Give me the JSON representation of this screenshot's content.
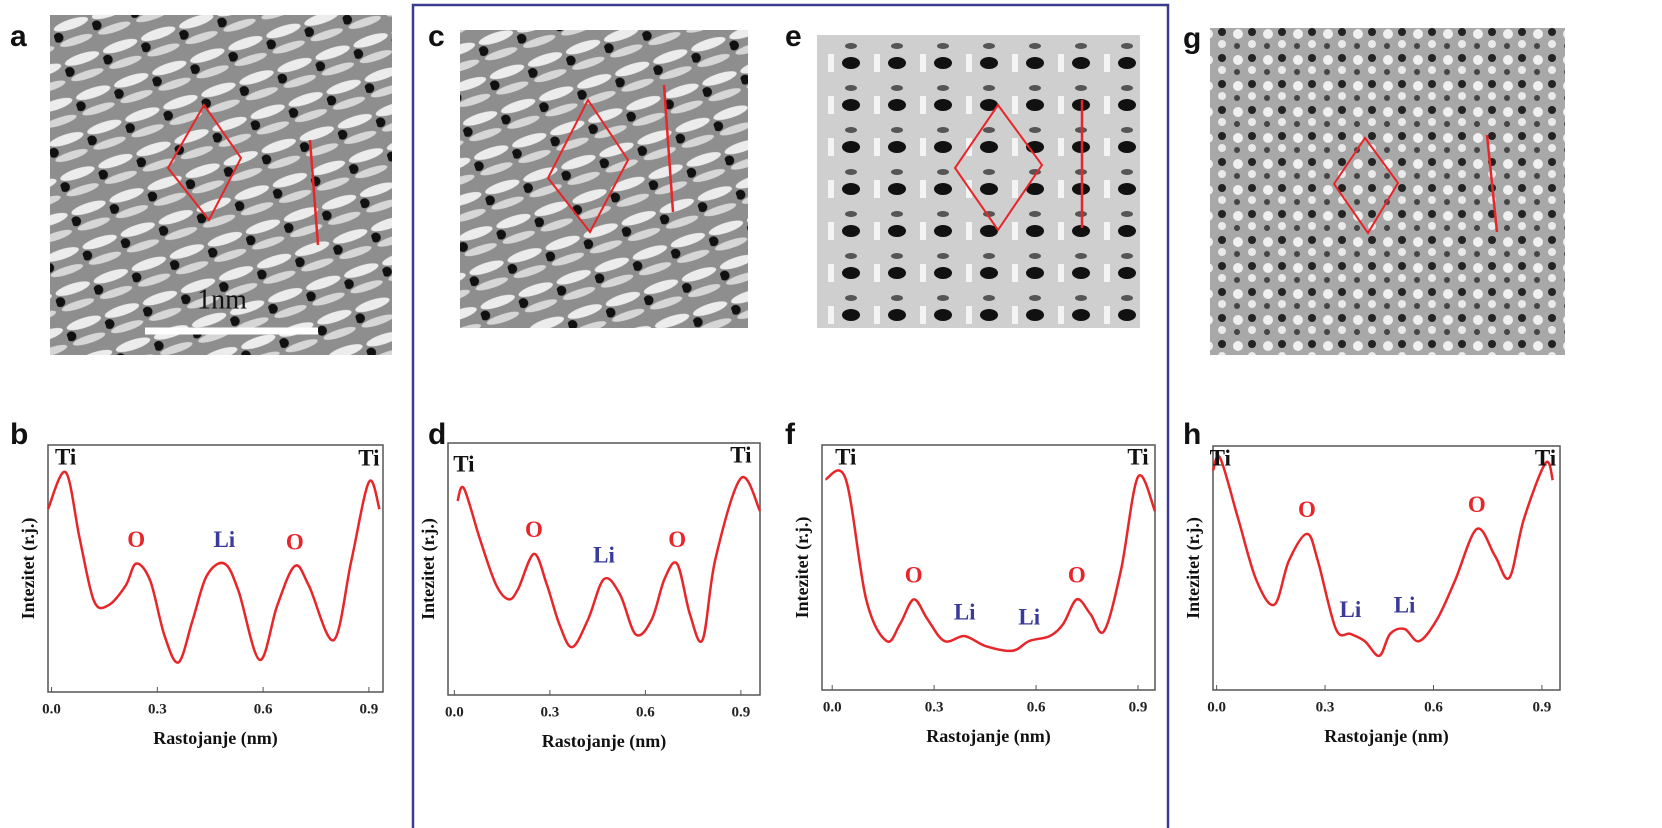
{
  "images": [
    {
      "label": "a",
      "scale_bar": "1nm"
    },
    {
      "label": "c"
    },
    {
      "label": "e"
    },
    {
      "label": "g"
    }
  ],
  "chart_data": [
    {
      "type": "line",
      "panel_label": "b",
      "xlabel": "Rastojanje (nm)",
      "ylabel": "Intezitet (r.j.)",
      "color": "#e8262a",
      "xlim": [
        -0.01,
        0.94
      ],
      "ylim": [
        0,
        1
      ],
      "xticks": [
        {
          "value": 0,
          "label": "0.0"
        },
        0.3,
        0.6,
        0.9
      ],
      "x": [
        -0.01,
        0.04,
        0.08,
        0.12,
        0.16,
        0.21,
        0.24,
        0.28,
        0.32,
        0.36,
        0.4,
        0.44,
        0.49,
        0.53,
        0.59,
        0.64,
        0.69,
        0.73,
        0.8,
        0.85,
        0.9,
        0.93
      ],
      "values": [
        0.74,
        0.89,
        0.62,
        0.37,
        0.35,
        0.43,
        0.52,
        0.45,
        0.23,
        0.12,
        0.29,
        0.47,
        0.52,
        0.41,
        0.13,
        0.35,
        0.51,
        0.43,
        0.21,
        0.53,
        0.85,
        0.74
      ],
      "annotations": [
        {
          "text": "Ti",
          "x": 0.04,
          "color": "#111111"
        },
        {
          "text": "O",
          "x": 0.24,
          "color": "#e8262a"
        },
        {
          "text": "Li",
          "x": 0.49,
          "color": "#3a3a9a"
        },
        {
          "text": "O",
          "x": 0.69,
          "color": "#e8262a"
        },
        {
          "text": "Ti",
          "x": 0.9,
          "color": "#111111"
        }
      ]
    },
    {
      "type": "line",
      "panel_label": "d",
      "xlabel": "Rastojanje (nm)",
      "ylabel": "Intezitet (r.j.)",
      "color": "#e8262a",
      "xlim": [
        -0.02,
        0.96
      ],
      "ylim": [
        0,
        1
      ],
      "xticks": [
        {
          "value": 0,
          "label": "0.0"
        },
        0.3,
        0.6,
        0.9
      ],
      "x": [
        0.01,
        0.03,
        0.08,
        0.13,
        0.17,
        0.2,
        0.25,
        0.29,
        0.33,
        0.37,
        0.42,
        0.47,
        0.52,
        0.57,
        0.62,
        0.66,
        0.7,
        0.74,
        0.78,
        0.82,
        0.9,
        0.96
      ],
      "values": [
        0.77,
        0.82,
        0.62,
        0.44,
        0.38,
        0.42,
        0.56,
        0.44,
        0.28,
        0.19,
        0.3,
        0.46,
        0.4,
        0.24,
        0.3,
        0.46,
        0.52,
        0.32,
        0.22,
        0.54,
        0.86,
        0.73
      ],
      "annotations": [
        {
          "text": "Ti",
          "x": 0.03,
          "color": "#111111"
        },
        {
          "text": "O",
          "x": 0.25,
          "color": "#e8262a"
        },
        {
          "text": "Li",
          "x": 0.47,
          "color": "#3a3a9a"
        },
        {
          "text": "O",
          "x": 0.7,
          "color": "#e8262a"
        },
        {
          "text": "Ti",
          "x": 0.9,
          "color": "#111111"
        }
      ]
    },
    {
      "type": "line",
      "panel_label": "f",
      "xlabel": "Rastojanje (nm)",
      "ylabel": "Intezitet (r.j.)",
      "color": "#e8262a",
      "xlim": [
        -0.03,
        0.95
      ],
      "ylim": [
        0,
        1
      ],
      "xticks": [
        {
          "value": 0,
          "label": "0.0"
        },
        0.3,
        0.6,
        0.9
      ],
      "x": [
        -0.02,
        0.04,
        0.1,
        0.16,
        0.2,
        0.24,
        0.28,
        0.33,
        0.39,
        0.45,
        0.53,
        0.58,
        0.64,
        0.68,
        0.72,
        0.76,
        0.8,
        0.85,
        0.9,
        0.95
      ],
      "values": [
        0.86,
        0.86,
        0.37,
        0.2,
        0.27,
        0.37,
        0.29,
        0.2,
        0.22,
        0.18,
        0.16,
        0.2,
        0.22,
        0.27,
        0.37,
        0.31,
        0.24,
        0.49,
        0.87,
        0.73
      ],
      "annotations": [
        {
          "text": "Ti",
          "x": 0.04,
          "color": "#111111"
        },
        {
          "text": "O",
          "x": 0.24,
          "color": "#e8262a"
        },
        {
          "text": "Li",
          "x": 0.39,
          "color": "#3a3a9a"
        },
        {
          "text": "Li",
          "x": 0.58,
          "color": "#3a3a9a"
        },
        {
          "text": "O",
          "x": 0.72,
          "color": "#e8262a"
        },
        {
          "text": "Ti",
          "x": 0.9,
          "color": "#111111"
        }
      ]
    },
    {
      "type": "line",
      "panel_label": "h",
      "xlabel": "Rastojanje (nm)",
      "ylabel": "Intezitet (r.j.)",
      "color": "#e8262a",
      "xlim": [
        -0.01,
        0.95
      ],
      "ylim": [
        0,
        1
      ],
      "xticks": [
        {
          "value": 0,
          "label": "0.0"
        },
        0.3,
        0.6,
        0.9
      ],
      "x": [
        -0.01,
        0.01,
        0.06,
        0.11,
        0.16,
        0.2,
        0.25,
        0.28,
        0.33,
        0.37,
        0.41,
        0.45,
        0.48,
        0.52,
        0.56,
        0.61,
        0.66,
        0.72,
        0.77,
        0.81,
        0.85,
        0.91,
        0.93
      ],
      "values": [
        0.9,
        0.95,
        0.7,
        0.45,
        0.35,
        0.53,
        0.64,
        0.53,
        0.25,
        0.23,
        0.2,
        0.14,
        0.23,
        0.25,
        0.2,
        0.29,
        0.45,
        0.66,
        0.55,
        0.46,
        0.7,
        0.93,
        0.86
      ],
      "annotations": [
        {
          "text": "Ti",
          "x": 0.01,
          "color": "#111111"
        },
        {
          "text": "O",
          "x": 0.25,
          "color": "#e8262a"
        },
        {
          "text": "Li",
          "x": 0.37,
          "color": "#3a3a9a"
        },
        {
          "text": "Li",
          "x": 0.52,
          "color": "#3a3a9a"
        },
        {
          "text": "O",
          "x": 0.72,
          "color": "#e8262a"
        },
        {
          "text": "Ti",
          "x": 0.91,
          "color": "#111111"
        }
      ]
    }
  ]
}
